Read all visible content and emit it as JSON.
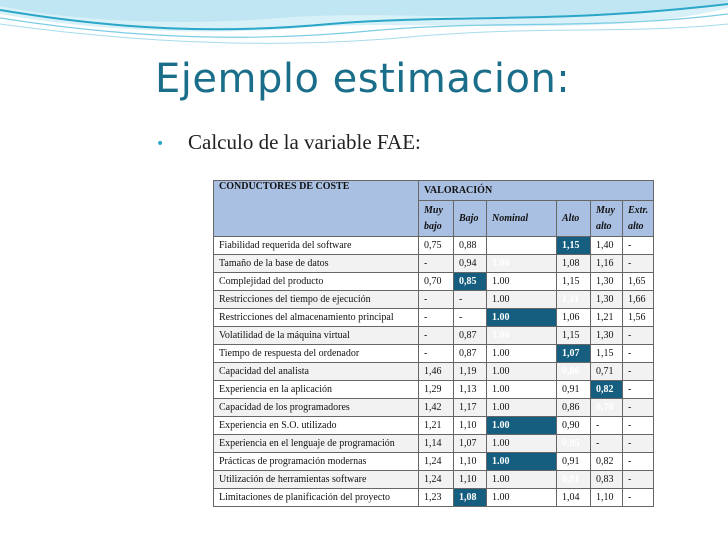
{
  "slide": {
    "title": "Ejemplo estimacion:",
    "bullet": "Calculo de la variable FAE:"
  },
  "colors": {
    "title": "#1a6e8a",
    "header_fill": "#a9c0e3",
    "selected_fill": "#155e80",
    "wave_light": "#bfe6f2",
    "wave_dark": "#2aa6c9"
  },
  "table": {
    "header_driver": "CONDUCTORES DE COSTE",
    "header_rating": "VALORACIÓN",
    "levels": [
      "Muy bajo",
      "Bajo",
      "Nominal",
      "Alto",
      "Muy alto",
      "Extr. alto"
    ],
    "rows": [
      {
        "name": "Fiabilidad requerida del software",
        "values": [
          "0,75",
          "0,88",
          "",
          "1,15",
          "1,40",
          "-"
        ],
        "selected": 3
      },
      {
        "name": "Tamaño de la base de datos",
        "values": [
          "-",
          "0,94",
          "1.00",
          "1,08",
          "1,16",
          "-"
        ],
        "selected": 2
      },
      {
        "name": "Complejidad del producto",
        "values": [
          "0,70",
          "0,85",
          "1.00",
          "1,15",
          "1,30",
          "1,65"
        ],
        "selected": 1
      },
      {
        "name": "Restricciones del tiempo de ejecución",
        "values": [
          "-",
          "-",
          "1.00",
          "1,11",
          "1,30",
          "1,66"
        ],
        "selected": 3
      },
      {
        "name": "Restricciones del almacenamiento principal",
        "values": [
          "-",
          "-",
          "1.00",
          "1,06",
          "1,21",
          "1,56"
        ],
        "selected": 2
      },
      {
        "name": "Volatilidad de la máquina virtual",
        "values": [
          "-",
          "0,87",
          "1.00",
          "1,15",
          "1,30",
          "-"
        ],
        "selected": 2
      },
      {
        "name": "Tiempo de respuesta del ordenador",
        "values": [
          "-",
          "0,87",
          "1.00",
          "1,07",
          "1,15",
          "-"
        ],
        "selected": 3
      },
      {
        "name": "Capacidad del analista",
        "values": [
          "1,46",
          "1,19",
          "1.00",
          "0,86",
          "0,71",
          "-"
        ],
        "selected": 3
      },
      {
        "name": "Experiencia en la aplicación",
        "values": [
          "1,29",
          "1,13",
          "1.00",
          "0,91",
          "0,82",
          "-"
        ],
        "selected": 4
      },
      {
        "name": "Capacidad de los programadores",
        "values": [
          "1,42",
          "1,17",
          "1.00",
          "0,86",
          "0,70",
          "-"
        ],
        "selected": 4
      },
      {
        "name": "Experiencia en S.O. utilizado",
        "values": [
          "1,21",
          "1,10",
          "1.00",
          "0,90",
          "-",
          "-"
        ],
        "selected": 2
      },
      {
        "name": "Experiencia en el lenguaje de programación",
        "values": [
          "1,14",
          "1,07",
          "1.00",
          "0,95",
          "-",
          "-"
        ],
        "selected": 3
      },
      {
        "name": "Prácticas de programación modernas",
        "values": [
          "1,24",
          "1,10",
          "1.00",
          "0,91",
          "0,82",
          "-"
        ],
        "selected": 2
      },
      {
        "name": "Utilización de herramientas software",
        "values": [
          "1,24",
          "1,10",
          "1.00",
          "0,91",
          "0,83",
          "-"
        ],
        "selected": 3
      },
      {
        "name": "Limitaciones de planificación del proyecto",
        "values": [
          "1,23",
          "1,08",
          "1.00",
          "1,04",
          "1,10",
          "-"
        ],
        "selected": 1
      }
    ]
  }
}
